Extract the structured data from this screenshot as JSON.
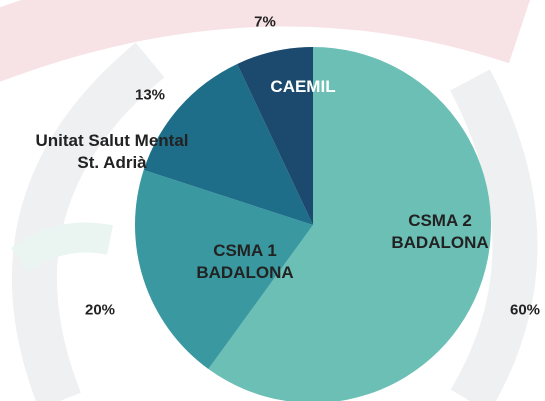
{
  "chart_data": {
    "type": "pie",
    "categories": [
      "CSMA 2\nBADALONA",
      "CSMA 1\nBADALONA",
      "Unitat Salut Mental\nSt. Adrià",
      "CAEMIL"
    ],
    "values": [
      60,
      20,
      13,
      7
    ],
    "value_labels": [
      "60%",
      "20%",
      "13%",
      "7%"
    ],
    "colors": [
      "#6bbfb5",
      "#3a98a0",
      "#1e6e8a",
      "#1c4a6e"
    ]
  }
}
